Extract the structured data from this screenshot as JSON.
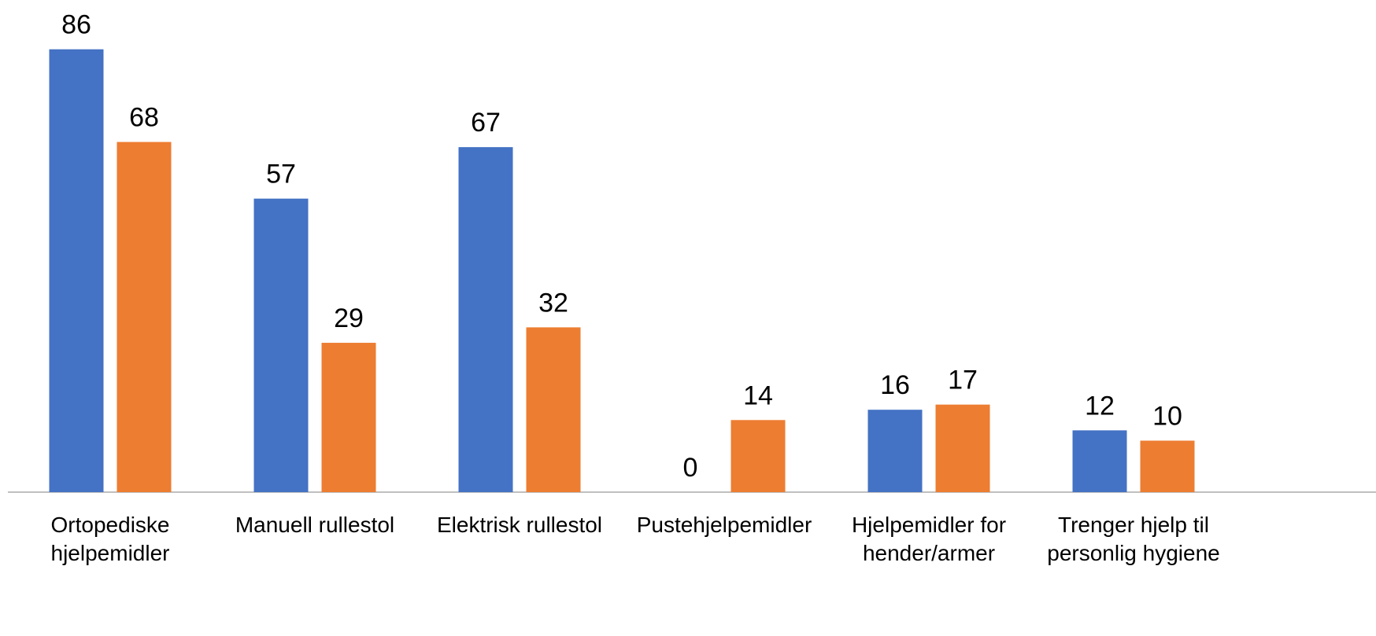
{
  "chart_data": {
    "type": "bar",
    "categories": [
      "Ortopediske hjelpemidler",
      "Manuell rullestol",
      "Elektrisk rullestol",
      "Pustehjelpemidler",
      "Hjelpemidler for hender/armer",
      "Trenger hjelp til personlig hygiene"
    ],
    "series": [
      {
        "color": "#4472c4",
        "values": [
          86,
          57,
          67,
          0,
          16,
          12
        ]
      },
      {
        "color": "#ed7d31",
        "values": [
          68,
          29,
          32,
          14,
          17,
          10
        ]
      }
    ]
  }
}
